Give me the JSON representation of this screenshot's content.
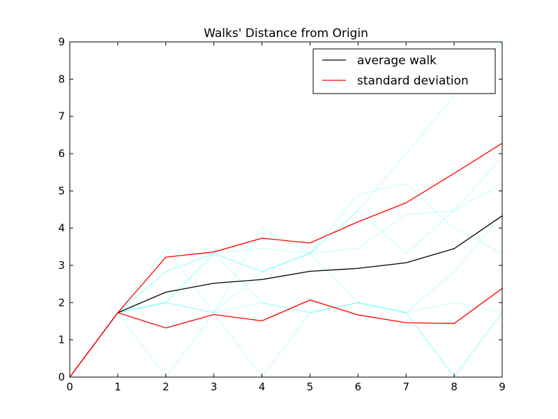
{
  "chart_data": {
    "type": "line",
    "title": "Walks' Distance from Origin",
    "xlabel": "",
    "ylabel": "",
    "xlim": [
      0,
      9
    ],
    "ylim": [
      0,
      9
    ],
    "x_ticks": [
      0,
      1,
      2,
      3,
      4,
      5,
      6,
      7,
      8,
      9
    ],
    "y_ticks": [
      0,
      1,
      2,
      3,
      4,
      5,
      6,
      7,
      8,
      9
    ],
    "grid": false,
    "legend_position": "top-right",
    "x": [
      0,
      1,
      2,
      3,
      4,
      5,
      6,
      7,
      8,
      9
    ],
    "walks": [
      [
        0,
        1.73,
        2.83,
        3.32,
        2.83,
        3.32,
        4.9,
        5.2,
        4.0,
        3.32
      ],
      [
        0,
        1.73,
        2.0,
        1.73,
        2.83,
        3.32,
        4.47,
        3.32,
        4.47,
        5.2
      ],
      [
        0,
        1.73,
        0.0,
        1.73,
        0.0,
        1.73,
        2.0,
        1.73,
        0.0,
        1.73
      ],
      [
        0,
        1.73,
        3.46,
        1.73,
        2.0,
        1.73,
        2.0,
        1.73,
        2.0,
        1.73
      ],
      [
        0,
        1.73,
        2.0,
        3.32,
        3.46,
        3.32,
        3.46,
        4.36,
        4.47,
        5.92
      ],
      [
        0,
        1.73,
        2.0,
        1.73,
        4.0,
        3.32,
        4.47,
        6.0,
        7.55,
        9.0
      ],
      [
        0,
        1.73,
        2.0,
        3.32,
        2.0,
        1.73,
        2.0,
        1.73,
        2.83,
        4.36
      ],
      [
        0,
        1.73,
        2.83,
        3.32,
        2.83,
        3.32,
        2.0,
        1.73,
        0.0,
        1.73
      ]
    ],
    "walk_color": "#00ffff",
    "series": [
      {
        "name": "average walk",
        "color": "#000000",
        "values": [
          0,
          1.73,
          2.28,
          2.52,
          2.62,
          2.84,
          2.92,
          3.07,
          3.45,
          4.33
        ]
      },
      {
        "name": "standard deviation",
        "color": "#ff0000",
        "values": [
          0,
          1.73,
          3.22,
          3.36,
          3.73,
          3.6,
          4.17,
          4.68,
          5.47,
          6.28
        ]
      },
      {
        "name": "",
        "color": "#ff0000",
        "values": [
          0,
          1.73,
          1.32,
          1.68,
          1.51,
          2.07,
          1.67,
          1.46,
          1.44,
          2.38
        ]
      }
    ]
  }
}
